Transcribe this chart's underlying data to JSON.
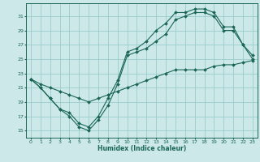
{
  "xlabel": "Humidex (Indice chaleur)",
  "bg_color": "#cce8e8",
  "grid_color": "#99cccc",
  "line_color": "#1a6655",
  "xlim": [
    -0.5,
    23.5
  ],
  "ylim": [
    14.0,
    32.8
  ],
  "yticks": [
    15,
    17,
    19,
    21,
    23,
    25,
    27,
    29,
    31
  ],
  "xticks": [
    0,
    1,
    2,
    3,
    4,
    5,
    6,
    7,
    8,
    9,
    10,
    11,
    12,
    13,
    14,
    15,
    16,
    17,
    18,
    19,
    20,
    21,
    22,
    23
  ],
  "line1_x": [
    0,
    1,
    2,
    3,
    4,
    5,
    6,
    7,
    8,
    9,
    10,
    11,
    12,
    13,
    14,
    15,
    16,
    17,
    18,
    19,
    20,
    21,
    22,
    23
  ],
  "line1_y": [
    22.2,
    21.0,
    19.5,
    18.0,
    17.0,
    15.5,
    15.0,
    16.5,
    18.5,
    21.5,
    25.5,
    26.0,
    26.5,
    27.5,
    28.5,
    30.5,
    31.0,
    31.5,
    31.5,
    31.0,
    29.0,
    29.0,
    27.0,
    25.0
  ],
  "line2_x": [
    0,
    1,
    2,
    3,
    4,
    5,
    6,
    7,
    8,
    9,
    10,
    11,
    12,
    13,
    14,
    15,
    16,
    17,
    18,
    19,
    20,
    21,
    22,
    23
  ],
  "line2_y": [
    22.2,
    21.0,
    19.5,
    18.0,
    17.5,
    16.0,
    15.5,
    17.0,
    19.5,
    22.0,
    26.0,
    26.5,
    27.5,
    29.0,
    30.0,
    31.5,
    31.5,
    32.0,
    32.0,
    31.5,
    29.5,
    29.5,
    27.0,
    25.5
  ],
  "line3_x": [
    0,
    1,
    2,
    3,
    4,
    5,
    6,
    7,
    8,
    9,
    10,
    11,
    12,
    13,
    14,
    15,
    16,
    17,
    18,
    19,
    20,
    21,
    22,
    23
  ],
  "line3_y": [
    22.2,
    21.5,
    21.0,
    20.5,
    20.0,
    19.5,
    19.0,
    19.5,
    20.0,
    20.5,
    21.0,
    21.5,
    22.0,
    22.5,
    23.0,
    23.5,
    23.5,
    23.5,
    23.5,
    24.0,
    24.2,
    24.2,
    24.5,
    24.8
  ]
}
